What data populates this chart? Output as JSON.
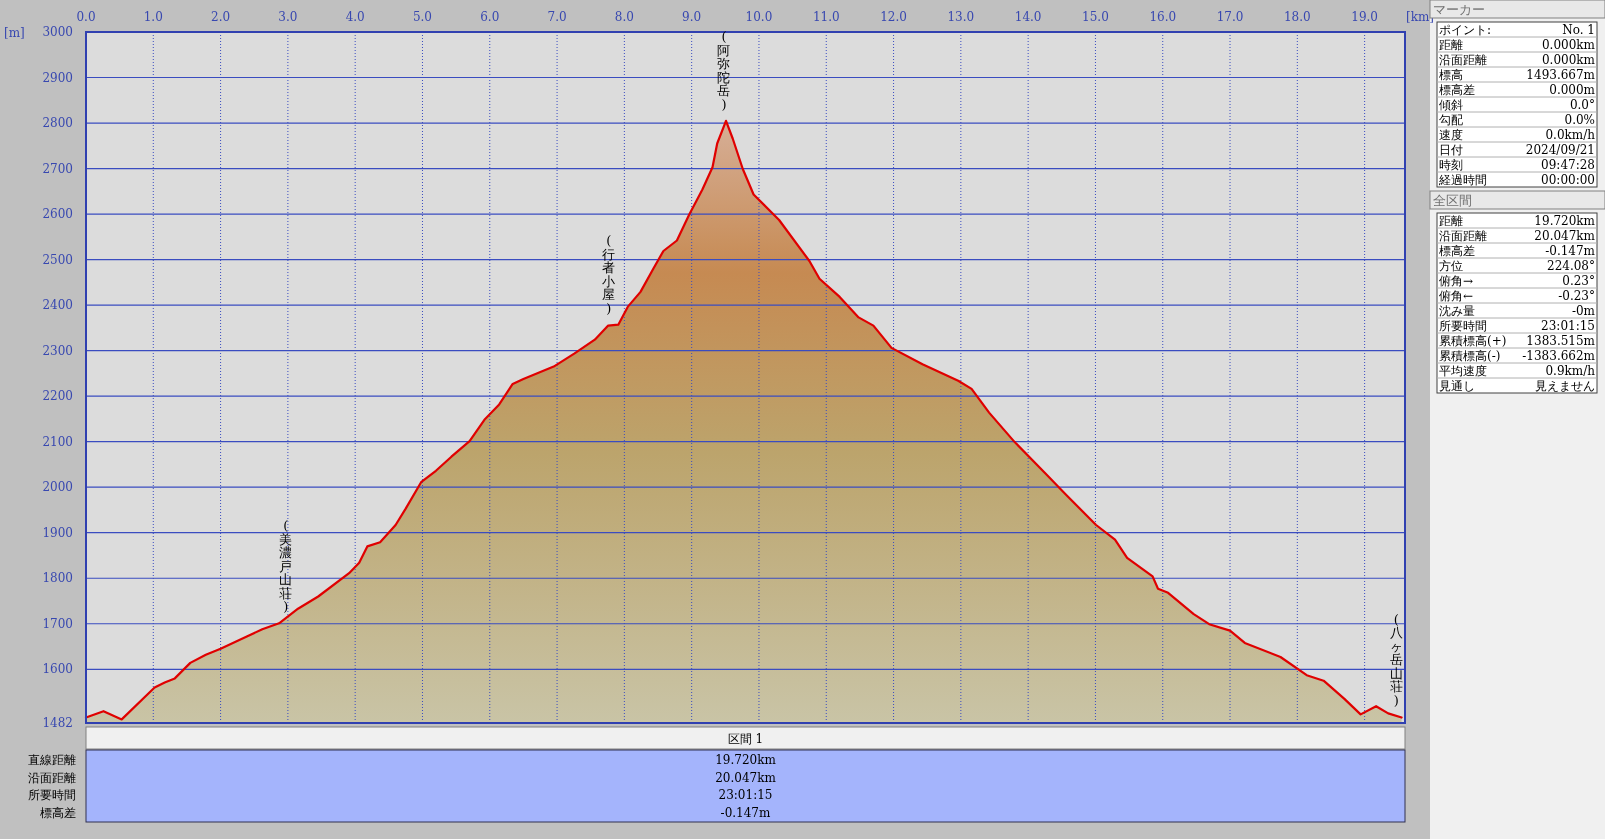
{
  "chart_data": [
    {
      "type": "area",
      "xlabel": "[km]",
      "ylabel": "[m]",
      "x": [
        0,
        0.26,
        0.53,
        1.02,
        1.17,
        1.32,
        1.55,
        1.78,
        2.0,
        2.39,
        2.62,
        2.87,
        3.15,
        3.45,
        3.91,
        4.06,
        4.18,
        4.37,
        4.6,
        4.75,
        4.98,
        5.2,
        5.43,
        5.7,
        5.92,
        6.14,
        6.34,
        6.5,
        6.95,
        7.26,
        7.56,
        7.76,
        7.91,
        8.05,
        8.24,
        8.43,
        8.58,
        8.78,
        8.96,
        9.16,
        9.31,
        9.38,
        9.51,
        9.61,
        9.76,
        9.92,
        10.3,
        10.75,
        10.9,
        11.2,
        11.48,
        11.7,
        11.97,
        12.43,
        12.96,
        13.16,
        13.42,
        13.8,
        14.25,
        14.56,
        15.01,
        15.29,
        15.47,
        15.85,
        15.93,
        16.08,
        16.46,
        16.69,
        17.0,
        17.22,
        17.75,
        18.14,
        18.39,
        18.7,
        18.94,
        19.17,
        19.35,
        19.55
      ],
      "series": [
        {
          "color": "#e00000",
          "values": [
            1494,
            1508,
            1490,
            1560,
            1571,
            1580,
            1614,
            1632,
            1645,
            1672,
            1688,
            1701,
            1733,
            1760,
            1811,
            1834,
            1870,
            1879,
            1917,
            1953,
            2011,
            2036,
            2067,
            2101,
            2148,
            2182,
            2227,
            2238,
            2265,
            2294,
            2324,
            2355,
            2357,
            2396,
            2429,
            2480,
            2519,
            2542,
            2598,
            2654,
            2703,
            2755,
            2805,
            2766,
            2699,
            2643,
            2587,
            2497,
            2458,
            2418,
            2373,
            2355,
            2306,
            2270,
            2234,
            2216,
            2164,
            2099,
            2031,
            1984,
            1917,
            1885,
            1845,
            1804,
            1777,
            1768,
            1721,
            1699,
            1685,
            1658,
            1627,
            1587,
            1575,
            1535,
            1501,
            1519,
            1503,
            1494
          ]
        }
      ],
      "xlim": [
        0,
        19.6
      ],
      "ylim": [
        1482,
        3000
      ],
      "xticks": [
        {
          "value": 0,
          "label": "0.0"
        },
        {
          "value": 1,
          "label": "1.0"
        },
        {
          "value": 2,
          "label": "2.0"
        },
        {
          "value": 3,
          "label": "3.0"
        },
        {
          "value": 4,
          "label": "4.0"
        },
        {
          "value": 5,
          "label": "5.0"
        },
        {
          "value": 6,
          "label": "6.0"
        },
        {
          "value": 7,
          "label": "7.0"
        },
        {
          "value": 8,
          "label": "8.0"
        },
        {
          "value": 9,
          "label": "9.0"
        },
        {
          "value": 10,
          "label": "10.0"
        },
        {
          "value": 11,
          "label": "11.0"
        },
        {
          "value": 12,
          "label": "12.0"
        },
        {
          "value": 13,
          "label": "13.0"
        },
        {
          "value": 14,
          "label": "14.0"
        },
        {
          "value": 15,
          "label": "15.0"
        },
        {
          "value": 16,
          "label": "16.0"
        },
        {
          "value": 17,
          "label": "17.0"
        },
        {
          "value": 18,
          "label": "18.0"
        },
        {
          "value": 19,
          "label": "19.0"
        }
      ],
      "yticks": [
        1482,
        1600,
        1700,
        1800,
        1900,
        2000,
        2100,
        2200,
        2300,
        2400,
        2500,
        2600,
        2700,
        2800,
        2900,
        3000
      ],
      "grid": true,
      "annotations": [
        {
          "text": "(美濃戸山荘)",
          "x": 3.0,
          "y": 1701
        },
        {
          "text": "(行者小屋)",
          "x": 7.8,
          "y": 2357
        },
        {
          "text": "(阿弥陀岳)",
          "x": 9.51,
          "y": 2805
        },
        {
          "text": "(八ヶ岳山荘)",
          "x": 19.5,
          "y": 1496
        }
      ]
    },
    {
      "type": "other",
      "title": "区間 1",
      "annotations": [
        "直線距離",
        "19.720km",
        "沿面距離",
        "20.047km",
        "所要時間",
        "23:01:15",
        "標高差",
        "-0.147m"
      ]
    },
    {
      "type": "other",
      "title": "マーカー",
      "annotations": [
        "ポイント:",
        "No. 1",
        "距離",
        "0.000km",
        "沿面距離",
        "0.000km",
        "標高",
        "1493.667m",
        "標高差",
        "0.000m",
        "傾斜",
        "0.0°",
        "勾配",
        "0.0%",
        "速度",
        "0.0km/h",
        "日付",
        "2024/09/21",
        "時刻",
        "09:47:28",
        "経過時間",
        "00:00:00"
      ]
    },
    {
      "type": "other",
      "title": "全区間",
      "annotations": [
        "距離",
        "19.720km",
        "沿面距離",
        "20.047km",
        "標高差",
        "-0.147m",
        "方位",
        "224.08°",
        "俯角→",
        "0.23°",
        "俯角←",
        "-0.23°",
        "沈み量",
        "-0m",
        "所要時間",
        "23:01:15",
        "累積標高(+)",
        "1383.515m",
        "累積標高(-)",
        "-1383.662m",
        "平均速度",
        "0.9km/h",
        "見通し",
        "見えません"
      ]
    }
  ]
}
